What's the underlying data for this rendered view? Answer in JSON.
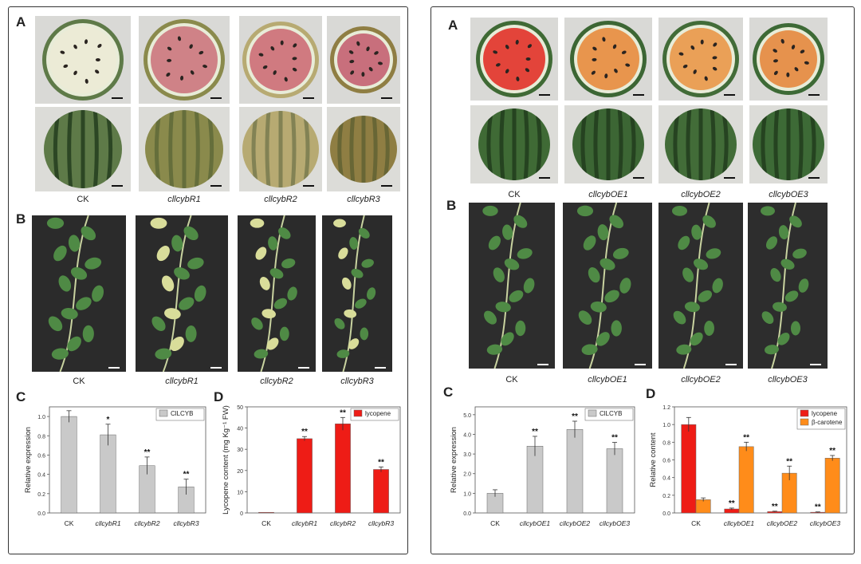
{
  "left": {
    "label_a": "A",
    "label_b": "B",
    "label_c": "C",
    "label_d": "D",
    "genotypes": [
      {
        "name": "CK",
        "italic": false
      },
      {
        "name": "cllcybR1",
        "italic": true
      },
      {
        "name": "cllcybR2",
        "italic": true
      },
      {
        "name": "cllcybR3",
        "italic": true
      }
    ],
    "colors": {
      "flesh": [
        "#ecebd6",
        "#cf8287",
        "#d07a80",
        "#c86f7c"
      ],
      "rind": [
        "#5e7a48",
        "#8a8a4c",
        "#b7aa72",
        "#8f7e43"
      ],
      "plant_bg": "#2b2b2b"
    }
  },
  "right": {
    "label_a": "A",
    "label_b": "B",
    "label_c": "C",
    "label_d": "D",
    "genotypes": [
      {
        "name": "CK",
        "italic": false
      },
      {
        "name": "cllcybOE1",
        "italic": true
      },
      {
        "name": "cllcybOE2",
        "italic": true
      },
      {
        "name": "cllcybOE3",
        "italic": true
      }
    ],
    "colors": {
      "flesh": [
        "#e3443a",
        "#e8954d",
        "#eaa057",
        "#e6924d"
      ],
      "rind": [
        "#3f6a35",
        "#3c6634",
        "#426c38",
        "#3d6a36"
      ],
      "plant_bg": "#2d2d2d"
    }
  },
  "chart_data": [
    {
      "id": "left-c",
      "type": "bar",
      "categories": [
        "CK",
        "cllcybR1",
        "cllcybR2",
        "cllcybR3"
      ],
      "series": [
        {
          "name": "ClLCYB",
          "values": [
            1.0,
            0.81,
            0.49,
            0.27
          ],
          "errors": [
            0.06,
            0.11,
            0.09,
            0.08
          ],
          "color": "#c9c9c9"
        }
      ],
      "significance": [
        "",
        "*",
        "**",
        "**"
      ],
      "ylabel": "Relative expression",
      "ylim": [
        0,
        1.1
      ],
      "yticks": [
        "0.0",
        "0.2",
        "0.4",
        "0.6",
        "0.8",
        "1.0"
      ],
      "ytick_values": [
        0,
        0.2,
        0.4,
        0.6,
        0.8,
        1.0
      ],
      "legend": "top-right"
    },
    {
      "id": "left-d",
      "type": "bar",
      "categories": [
        "CK",
        "cllcybR1",
        "cllcybR2",
        "cllcybR3"
      ],
      "series": [
        {
          "name": "lycopene",
          "values": [
            0.3,
            35,
            42,
            20.5
          ],
          "errors": [
            0,
            1.0,
            3.0,
            1.2
          ],
          "color": "#ee1c16"
        }
      ],
      "significance": [
        "",
        "**",
        "**",
        "**"
      ],
      "ylabel": "Lycopene content (mg Kg⁻¹ FW)",
      "ylim": [
        0,
        50
      ],
      "yticks": [
        "0",
        "10",
        "20",
        "30",
        "40",
        "50"
      ],
      "ytick_values": [
        0,
        10,
        20,
        30,
        40,
        50
      ],
      "legend": "top-right"
    },
    {
      "id": "right-c",
      "type": "bar",
      "categories": [
        "CK",
        "cllcybOE1",
        "cllcybOE2",
        "cllcybOE3"
      ],
      "series": [
        {
          "name": "ClLCYB",
          "values": [
            1.0,
            3.4,
            4.25,
            3.27
          ],
          "errors": [
            0.18,
            0.5,
            0.42,
            0.32
          ],
          "color": "#c9c9c9"
        }
      ],
      "significance": [
        "",
        "**",
        "**",
        "**"
      ],
      "ylabel": "Relative expression",
      "ylim": [
        0,
        5.4
      ],
      "yticks": [
        "0.0",
        "1.0",
        "2.0",
        "3.0",
        "4.0",
        "5.0"
      ],
      "ytick_values": [
        0,
        1,
        2,
        3,
        4,
        5
      ],
      "legend": "top-right"
    },
    {
      "id": "right-d",
      "type": "bar",
      "categories": [
        "CK",
        "cllcybOE1",
        "cllcybOE2",
        "cllcybOE3"
      ],
      "series": [
        {
          "name": "lycopene",
          "values": [
            1.0,
            0.045,
            0.015,
            0.008
          ],
          "errors": [
            0.08,
            0.01,
            0.005,
            0.004
          ],
          "color": "#ee1c16"
        },
        {
          "name": "β-carotene",
          "values": [
            0.15,
            0.75,
            0.45,
            0.62
          ],
          "errors": [
            0.02,
            0.05,
            0.08,
            0.03
          ],
          "color": "#ff8c1a"
        }
      ],
      "significance_series": [
        [
          "",
          "**",
          "**",
          "**"
        ],
        [
          "",
          "**",
          "**",
          "**"
        ]
      ],
      "ylabel": "Relative content",
      "ylim": [
        0,
        1.2
      ],
      "yticks": [
        "0.0",
        "0.2",
        "0.4",
        "0.6",
        "0.8",
        "1.0",
        "1.2"
      ],
      "ytick_values": [
        0,
        0.2,
        0.4,
        0.6,
        0.8,
        1.0,
        1.2
      ],
      "legend": "top-right"
    }
  ]
}
